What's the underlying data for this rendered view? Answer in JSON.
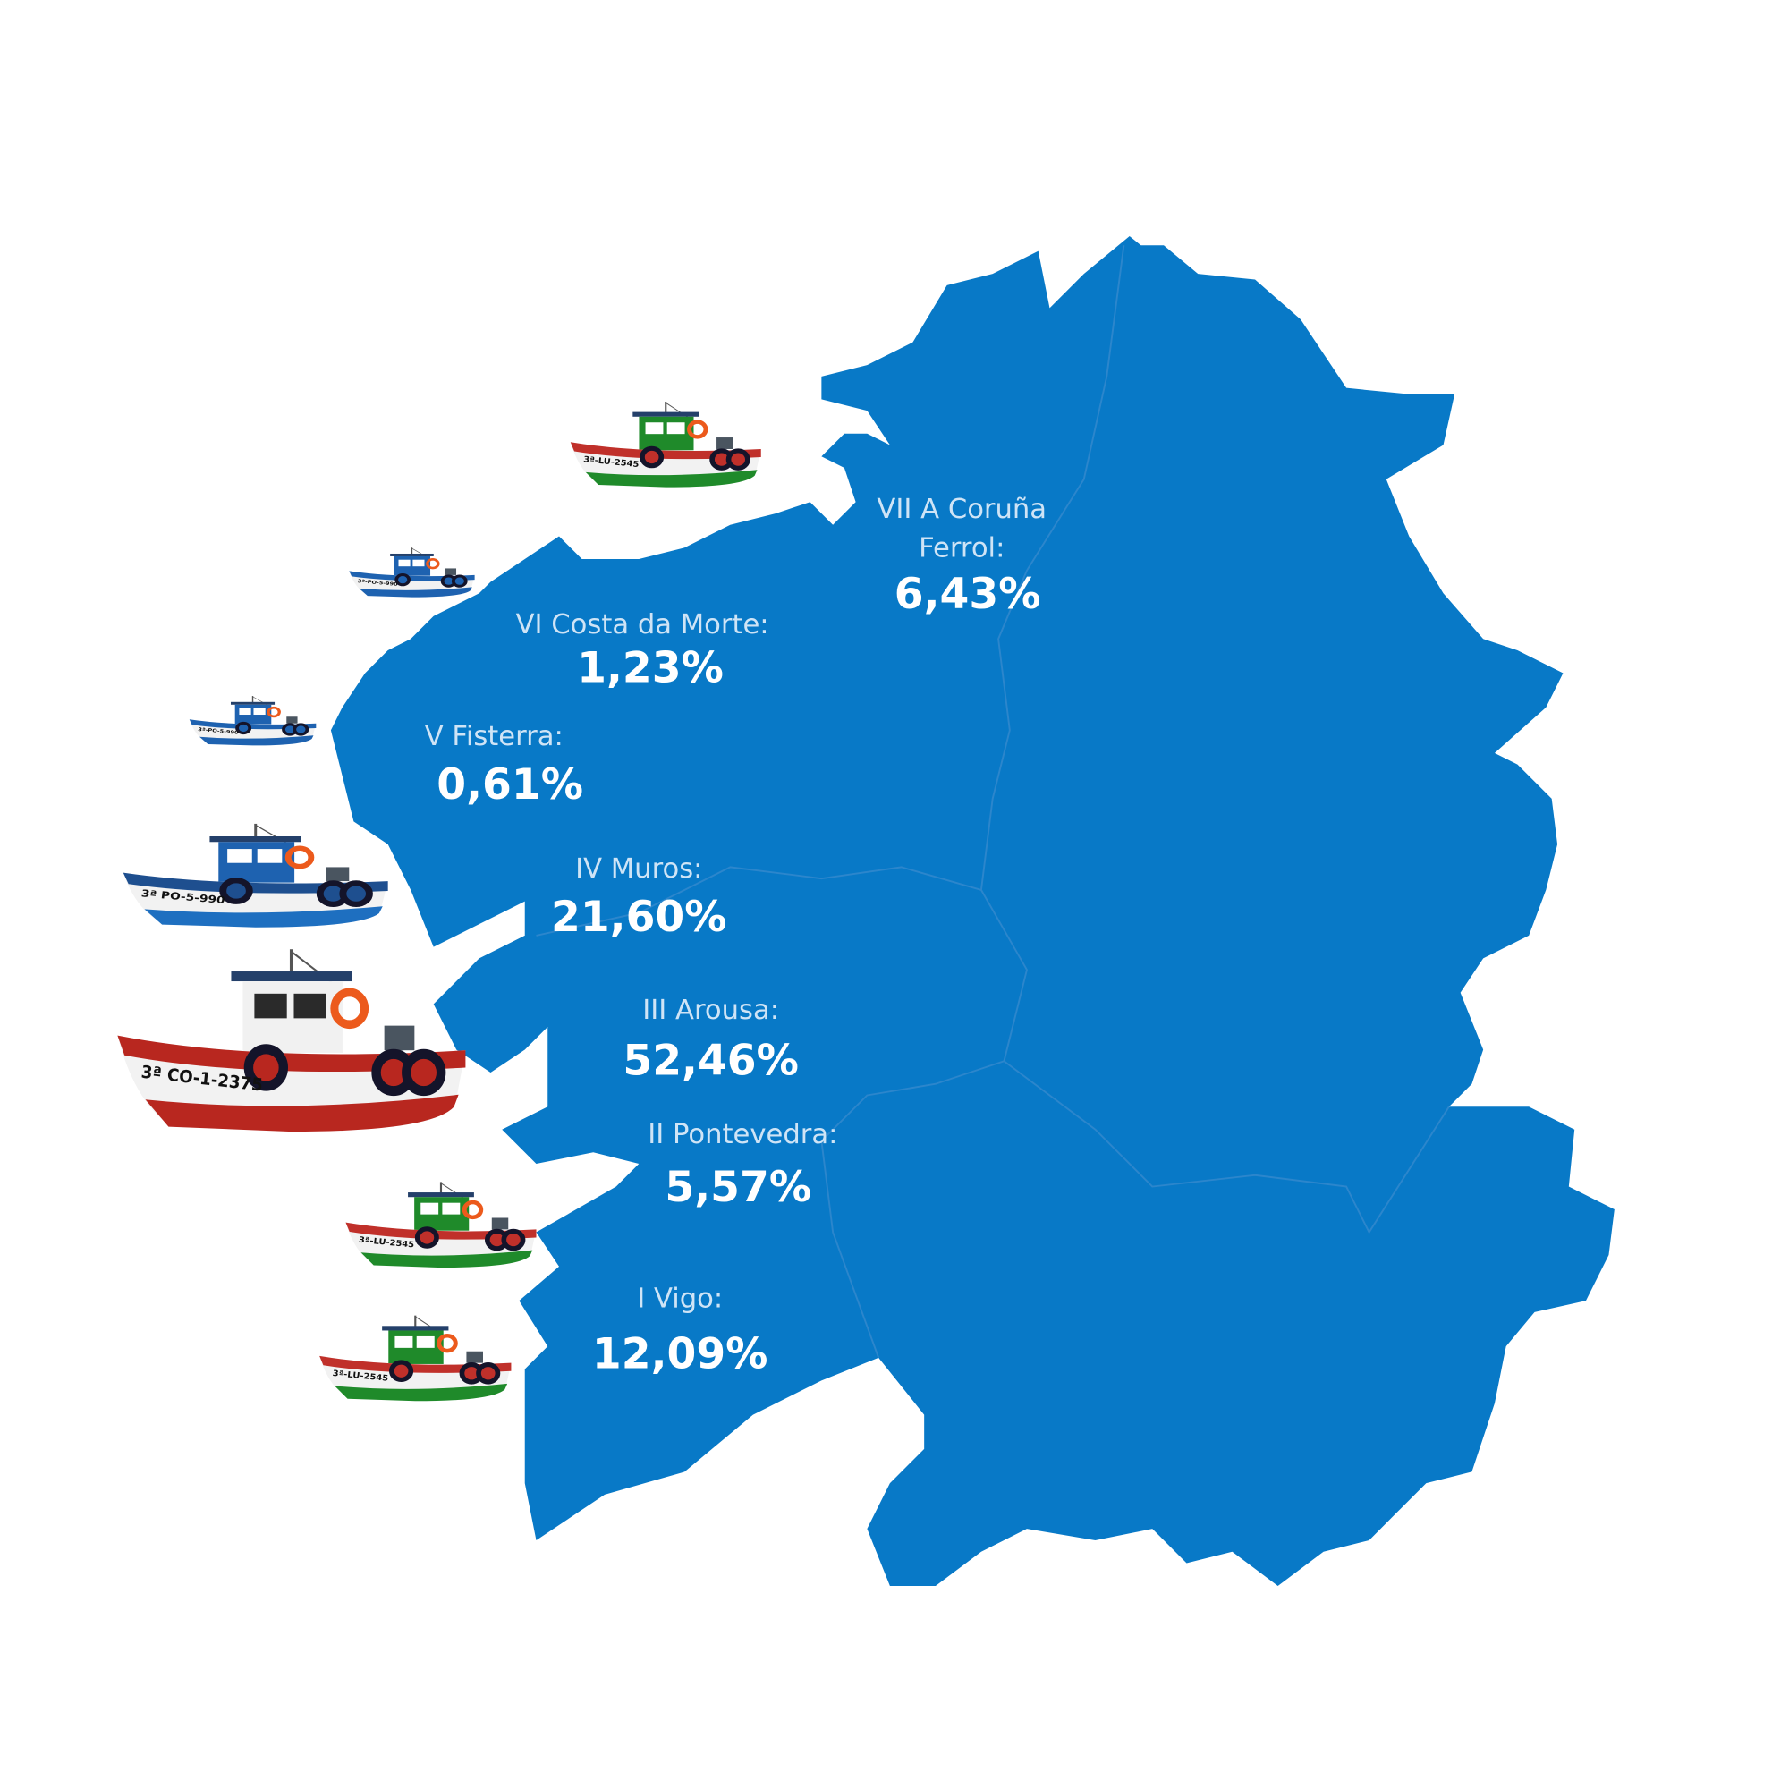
{
  "map": {
    "land_color": "#0879c7",
    "border_color": "#2c86cc",
    "label_color": "#cfe4f6",
    "value_color": "#ffffff"
  },
  "zones": [
    {
      "name_line1": "VII A Coruña",
      "name_line2": "Ferrol:",
      "value": "6,43%"
    },
    {
      "name_line1": "VI Costa da Morte:",
      "value": "1,23%"
    },
    {
      "name_line1": "V Fisterra:",
      "value": "0,61%"
    },
    {
      "name_line1": "IV Muros:",
      "value": "21,60%"
    },
    {
      "name_line1": "III Arousa:",
      "value": "52,46%"
    },
    {
      "name_line1": "II Pontevedra:",
      "value": "5,57%"
    },
    {
      "name_line1": "I Vigo:",
      "value": "12,09%"
    }
  ],
  "boats": [
    {
      "registration": "3ª-LU-2545",
      "cabin": "#1f8a2a",
      "stripe": "#c0302a",
      "bottom": "#1f8a2a"
    },
    {
      "registration": "3ª-PO-5-990",
      "cabin": "#1e62b0",
      "stripe": "#1e62b0",
      "bottom": "#1e62b0"
    },
    {
      "registration": "3ª-PO-5-990",
      "cabin": "#1e62b0",
      "stripe": "#1e62b0",
      "bottom": "#1e62b0"
    },
    {
      "registration": "3ª PO-5-990",
      "cabin": "#1e62b0",
      "stripe": "#1e4f8f",
      "bottom": "#1e6fc0"
    },
    {
      "registration": "3ª CO-1-2375",
      "cabin": "#f1f1f1",
      "stripe": "#b8271f",
      "bottom": "#b8271f"
    },
    {
      "registration": "3ª-LU-2545",
      "cabin": "#1f8a2a",
      "stripe": "#c0302a",
      "bottom": "#1f8a2a"
    },
    {
      "registration": "3ª-LU-2545",
      "cabin": "#1f8a2a",
      "stripe": "#c0302a",
      "bottom": "#1f8a2a"
    }
  ]
}
